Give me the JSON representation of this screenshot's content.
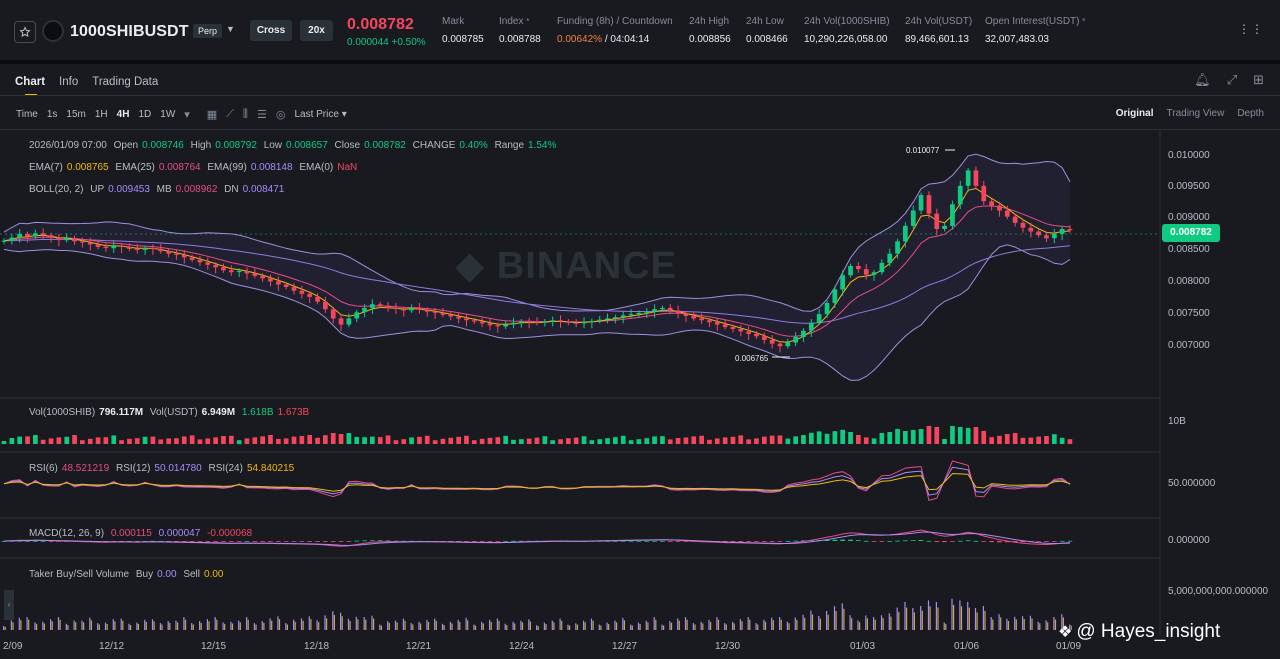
{
  "ticker": {
    "symbol": "1000SHIBUSDT",
    "contract_type": "Perp",
    "margin_mode": "Cross",
    "leverage": "20x",
    "last_price": "0.008782",
    "change": "0.000044 +0.50%",
    "stats": [
      {
        "label": "Mark",
        "value": "0.008785"
      },
      {
        "label": "Index",
        "value": "0.008788"
      },
      {
        "label": "Funding (8h) / Countdown",
        "value": "0.00642%",
        "value2": "04:04:14"
      },
      {
        "label": "24h High",
        "value": "0.008856"
      },
      {
        "label": "24h Low",
        "value": "0.008466"
      },
      {
        "label": "24h Vol(1000SHIB)",
        "value": "10,290,226,058.00"
      },
      {
        "label": "24h Vol(USDT)",
        "value": "89,466,601.13"
      },
      {
        "label": "Open Interest(USDT)",
        "value": "32,007,483.03"
      }
    ]
  },
  "tabs": [
    "Chart",
    "Info",
    "Trading Data"
  ],
  "toolbar": {
    "time_label": "Time",
    "intervals": [
      "1s",
      "15m",
      "1H",
      "4H",
      "1D",
      "1W"
    ],
    "active_interval": "4H",
    "price_type": "Last Price",
    "views": [
      "Original",
      "Trading View",
      "Depth"
    ]
  },
  "ohlc": {
    "datetime": "2026/01/09 07:00",
    "open_label": "Open",
    "open": "0.008746",
    "high_label": "High",
    "high": "0.008792",
    "low_label": "Low",
    "low": "0.008657",
    "close_label": "Close",
    "close": "0.008782",
    "change_label": "CHANGE",
    "change": "0.40%",
    "range_label": "Range",
    "range": "1.54%"
  },
  "ema": {
    "ema7_label": "EMA(7)",
    "ema7": "0.008765",
    "ema25_label": "EMA(25)",
    "ema25": "0.008764",
    "ema99_label": "EMA(99)",
    "ema99": "0.008148",
    "ema0_label": "EMA(0)",
    "ema0": "NaN"
  },
  "boll": {
    "label": "BOLL(20, 2)",
    "up_label": "UP",
    "up": "0.009453",
    "mb_label": "MB",
    "mb": "0.008962",
    "dn_label": "DN",
    "dn": "0.008471"
  },
  "watermark": "BINANCE",
  "price_axis": [
    "0.010000",
    "0.009500",
    "0.009000",
    "0.008500",
    "0.008000",
    "0.007500",
    "0.007000"
  ],
  "current_price_tag": "0.008782",
  "high_annotation": "0.010077",
  "low_annotation": "0.006765",
  "volume": {
    "label": "Vol(1000SHIB)",
    "value": "796.117M",
    "usdt_label": "Vol(USDT)",
    "usdt": "6.949M",
    "ma1": "1.618B",
    "ma2": "1.673B",
    "axis": "10B"
  },
  "rsi": {
    "rsi6_label": "RSI(6)",
    "rsi6": "48.521219",
    "rsi12_label": "RSI(12)",
    "rsi12": "50.014780",
    "rsi24_label": "RSI(24)",
    "rsi24": "54.840215",
    "axis": "50.000000"
  },
  "macd": {
    "label": "MACD(12, 26, 9)",
    "dif": "0.000115",
    "dea": "0.000047",
    "hist": "-0.000068",
    "axis": "0.000000"
  },
  "taker": {
    "label": "Taker Buy/Sell Volume",
    "buy_label": "Buy",
    "buy": "0.00",
    "sell_label": "Sell",
    "sell": "0.00",
    "axis": "5,000,000,000.000000"
  },
  "dates": [
    "2/09",
    "12/12",
    "12/15",
    "12/18",
    "12/21",
    "12/24",
    "12/27",
    "12/30",
    "01/03",
    "01/06",
    "01/09"
  ],
  "credit": "@ Hayes_insight",
  "colors": {
    "up": "#0ecb81",
    "down": "#f6465d",
    "accent": "#f0b90b",
    "bg": "#181a20"
  },
  "chart_data": {
    "type": "candlestick",
    "interval": "4H",
    "dates": [
      "2/09",
      "12/12",
      "12/15",
      "12/18",
      "12/21",
      "12/24",
      "12/27",
      "12/30",
      "01/03",
      "01/06",
      "01/09"
    ],
    "closes": [
      0.00861,
      0.00866,
      0.00872,
      0.00868,
      0.00873,
      0.0087,
      0.00866,
      0.00862,
      0.00865,
      0.0086,
      0.00858,
      0.00855,
      0.00851,
      0.00849,
      0.00853,
      0.00851,
      0.00848,
      0.00846,
      0.00849,
      0.00848,
      0.00844,
      0.0084,
      0.00838,
      0.00834,
      0.0083,
      0.00826,
      0.00822,
      0.00818,
      0.00813,
      0.0081,
      0.00812,
      0.00808,
      0.00804,
      0.008,
      0.00795,
      0.0079,
      0.00786,
      0.0078,
      0.00775,
      0.0077,
      0.00762,
      0.0075,
      0.00735,
      0.00725,
      0.00735,
      0.00745,
      0.00752,
      0.00758,
      0.00756,
      0.00752,
      0.0075,
      0.00748,
      0.00752,
      0.00749,
      0.00746,
      0.00744,
      0.00741,
      0.00738,
      0.00735,
      0.00732,
      0.0073,
      0.00727,
      0.00724,
      0.00722,
      0.00725,
      0.00728,
      0.0073,
      0.00729,
      0.00728,
      0.0073,
      0.00732,
      0.0073,
      0.00728,
      0.00727,
      0.00729,
      0.00731,
      0.00733,
      0.00735,
      0.00737,
      0.0074,
      0.00742,
      0.00744,
      0.00746,
      0.0075,
      0.00752,
      0.00748,
      0.00743,
      0.00739,
      0.00735,
      0.00732,
      0.00729,
      0.00725,
      0.00721,
      0.00718,
      0.00714,
      0.0071,
      0.00706,
      0.007,
      0.00694,
      0.0069,
      0.00696,
      0.00705,
      0.00715,
      0.00728,
      0.00742,
      0.0076,
      0.00782,
      0.00805,
      0.0082,
      0.00815,
      0.00806,
      0.0081,
      0.00825,
      0.0084,
      0.0086,
      0.00885,
      0.0091,
      0.00935,
      0.00905,
      0.0088,
      0.00885,
      0.0092,
      0.0095,
      0.00975,
      0.0095,
      0.00925,
      0.00918,
      0.0091,
      0.009,
      0.0089,
      0.00882,
      0.00876,
      0.0087,
      0.00865,
      0.00872,
      0.0088,
      0.00878
    ]
  }
}
